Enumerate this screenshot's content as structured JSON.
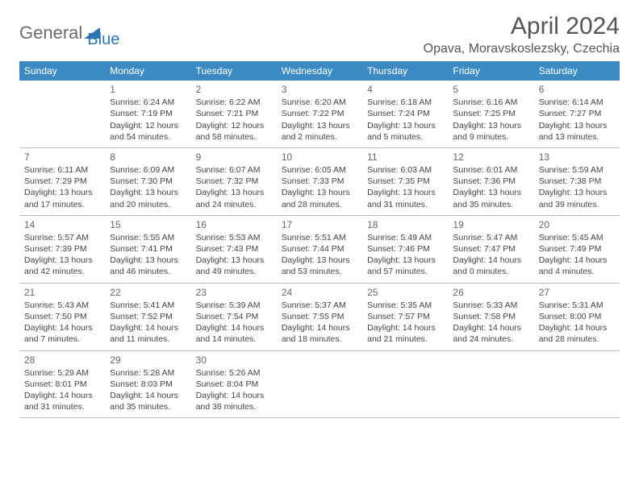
{
  "logo": {
    "part1": "General",
    "part2": "Blue"
  },
  "title": "April 2024",
  "location": "Opava, Moravskoslezsky, Czechia",
  "colors": {
    "header_bg": "#3b8ac4",
    "header_text": "#ffffff",
    "border": "#c0c0c0",
    "text": "#444444",
    "title_text": "#555555",
    "logo_gray": "#6b6b6b",
    "logo_blue": "#2e74b5"
  },
  "weekdays": [
    "Sunday",
    "Monday",
    "Tuesday",
    "Wednesday",
    "Thursday",
    "Friday",
    "Saturday"
  ],
  "weeks": [
    [
      null,
      {
        "n": "1",
        "sr": "6:24 AM",
        "ss": "7:19 PM",
        "dl": "12 hours and 54 minutes."
      },
      {
        "n": "2",
        "sr": "6:22 AM",
        "ss": "7:21 PM",
        "dl": "12 hours and 58 minutes."
      },
      {
        "n": "3",
        "sr": "6:20 AM",
        "ss": "7:22 PM",
        "dl": "13 hours and 2 minutes."
      },
      {
        "n": "4",
        "sr": "6:18 AM",
        "ss": "7:24 PM",
        "dl": "13 hours and 5 minutes."
      },
      {
        "n": "5",
        "sr": "6:16 AM",
        "ss": "7:25 PM",
        "dl": "13 hours and 9 minutes."
      },
      {
        "n": "6",
        "sr": "6:14 AM",
        "ss": "7:27 PM",
        "dl": "13 hours and 13 minutes."
      }
    ],
    [
      {
        "n": "7",
        "sr": "6:11 AM",
        "ss": "7:29 PM",
        "dl": "13 hours and 17 minutes."
      },
      {
        "n": "8",
        "sr": "6:09 AM",
        "ss": "7:30 PM",
        "dl": "13 hours and 20 minutes."
      },
      {
        "n": "9",
        "sr": "6:07 AM",
        "ss": "7:32 PM",
        "dl": "13 hours and 24 minutes."
      },
      {
        "n": "10",
        "sr": "6:05 AM",
        "ss": "7:33 PM",
        "dl": "13 hours and 28 minutes."
      },
      {
        "n": "11",
        "sr": "6:03 AM",
        "ss": "7:35 PM",
        "dl": "13 hours and 31 minutes."
      },
      {
        "n": "12",
        "sr": "6:01 AM",
        "ss": "7:36 PM",
        "dl": "13 hours and 35 minutes."
      },
      {
        "n": "13",
        "sr": "5:59 AM",
        "ss": "7:38 PM",
        "dl": "13 hours and 39 minutes."
      }
    ],
    [
      {
        "n": "14",
        "sr": "5:57 AM",
        "ss": "7:39 PM",
        "dl": "13 hours and 42 minutes."
      },
      {
        "n": "15",
        "sr": "5:55 AM",
        "ss": "7:41 PM",
        "dl": "13 hours and 46 minutes."
      },
      {
        "n": "16",
        "sr": "5:53 AM",
        "ss": "7:43 PM",
        "dl": "13 hours and 49 minutes."
      },
      {
        "n": "17",
        "sr": "5:51 AM",
        "ss": "7:44 PM",
        "dl": "13 hours and 53 minutes."
      },
      {
        "n": "18",
        "sr": "5:49 AM",
        "ss": "7:46 PM",
        "dl": "13 hours and 57 minutes."
      },
      {
        "n": "19",
        "sr": "5:47 AM",
        "ss": "7:47 PM",
        "dl": "14 hours and 0 minutes."
      },
      {
        "n": "20",
        "sr": "5:45 AM",
        "ss": "7:49 PM",
        "dl": "14 hours and 4 minutes."
      }
    ],
    [
      {
        "n": "21",
        "sr": "5:43 AM",
        "ss": "7:50 PM",
        "dl": "14 hours and 7 minutes."
      },
      {
        "n": "22",
        "sr": "5:41 AM",
        "ss": "7:52 PM",
        "dl": "14 hours and 11 minutes."
      },
      {
        "n": "23",
        "sr": "5:39 AM",
        "ss": "7:54 PM",
        "dl": "14 hours and 14 minutes."
      },
      {
        "n": "24",
        "sr": "5:37 AM",
        "ss": "7:55 PM",
        "dl": "14 hours and 18 minutes."
      },
      {
        "n": "25",
        "sr": "5:35 AM",
        "ss": "7:57 PM",
        "dl": "14 hours and 21 minutes."
      },
      {
        "n": "26",
        "sr": "5:33 AM",
        "ss": "7:58 PM",
        "dl": "14 hours and 24 minutes."
      },
      {
        "n": "27",
        "sr": "5:31 AM",
        "ss": "8:00 PM",
        "dl": "14 hours and 28 minutes."
      }
    ],
    [
      {
        "n": "28",
        "sr": "5:29 AM",
        "ss": "8:01 PM",
        "dl": "14 hours and 31 minutes."
      },
      {
        "n": "29",
        "sr": "5:28 AM",
        "ss": "8:03 PM",
        "dl": "14 hours and 35 minutes."
      },
      {
        "n": "30",
        "sr": "5:26 AM",
        "ss": "8:04 PM",
        "dl": "14 hours and 38 minutes."
      },
      null,
      null,
      null,
      null
    ]
  ],
  "labels": {
    "sunrise": "Sunrise:",
    "sunset": "Sunset:",
    "daylight": "Daylight:"
  }
}
